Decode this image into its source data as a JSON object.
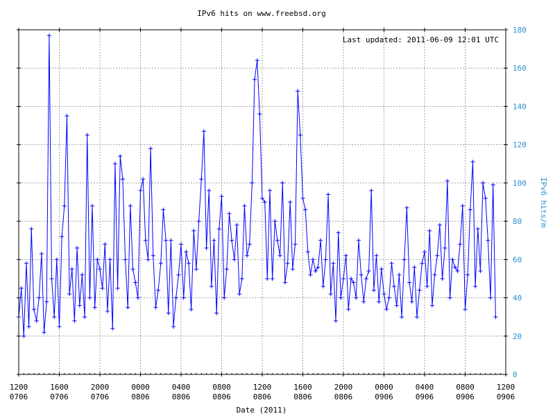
{
  "chart_data": {
    "type": "line",
    "title": "IPv6 hits on www.freebsd.org",
    "annotation": "Last updated: 2011-06-09 12:01 UTC",
    "xlabel": "Date (2011)",
    "ylabel": "IPv6 hits/m",
    "x_range": [
      "2011-07-06 12:00",
      "2011-09-06 12:00"
    ],
    "ylim": [
      0,
      180
    ],
    "y_ticks": [
      "0",
      "20",
      "40",
      "60",
      "80",
      "100",
      "120",
      "140",
      "160",
      "180"
    ],
    "x_ticks": [
      {
        "time": "1200",
        "day": "0706"
      },
      {
        "time": "1600",
        "day": "0706"
      },
      {
        "time": "2000",
        "day": "0706"
      },
      {
        "time": "0000",
        "day": "0806"
      },
      {
        "time": "0400",
        "day": "0806"
      },
      {
        "time": "0800",
        "day": "0806"
      },
      {
        "time": "1200",
        "day": "0806"
      },
      {
        "time": "1600",
        "day": "0806"
      },
      {
        "time": "2000",
        "day": "0806"
      },
      {
        "time": "0000",
        "day": "0906"
      },
      {
        "time": "0400",
        "day": "0906"
      },
      {
        "time": "0800",
        "day": "0906"
      },
      {
        "time": "1200",
        "day": "0906"
      }
    ],
    "grid": true,
    "series_color": "#0000ff",
    "axis_right_color": "#2b8fd0",
    "series": [
      {
        "name": "",
        "x_start_hour": 0,
        "x_step_hours": 0.5,
        "values": [
          30,
          45,
          20,
          58,
          25,
          76,
          34,
          28,
          40,
          63,
          22,
          38,
          177,
          50,
          30,
          60,
          25,
          72,
          88,
          135,
          42,
          55,
          28,
          66,
          36,
          52,
          30,
          125,
          40,
          88,
          35,
          60,
          55,
          45,
          68,
          33,
          60,
          24,
          110,
          45,
          114,
          102,
          60,
          35,
          88,
          55,
          48,
          40,
          96,
          102,
          70,
          60,
          118,
          62,
          35,
          44,
          58,
          86,
          70,
          32,
          70,
          25,
          40,
          52,
          68,
          40,
          64,
          58,
          34,
          75,
          55,
          80,
          102,
          127,
          66,
          96,
          46,
          70,
          32,
          76,
          93,
          40,
          55,
          84,
          70,
          60,
          78,
          42,
          50,
          88,
          62,
          68,
          100,
          154,
          164,
          136,
          92,
          90,
          50,
          96,
          50,
          80,
          70,
          62,
          100,
          48,
          58,
          90,
          55,
          68,
          148,
          125,
          92,
          86,
          64,
          52,
          60,
          54,
          56,
          70,
          46,
          60,
          94,
          42,
          58,
          28,
          74,
          40,
          50,
          62,
          34,
          50,
          48,
          40,
          70,
          52,
          38,
          50,
          54,
          96,
          44,
          62,
          38,
          55,
          42,
          34,
          40,
          58,
          46,
          36,
          52,
          30,
          60,
          87,
          48,
          38,
          56,
          30,
          44,
          58,
          64,
          46,
          75,
          36,
          52,
          62,
          78,
          50,
          66,
          101,
          40,
          60,
          56,
          54,
          68,
          88,
          34,
          52,
          86,
          111,
          46,
          76,
          54,
          100,
          92,
          70,
          40,
          99,
          30
        ]
      }
    ]
  }
}
